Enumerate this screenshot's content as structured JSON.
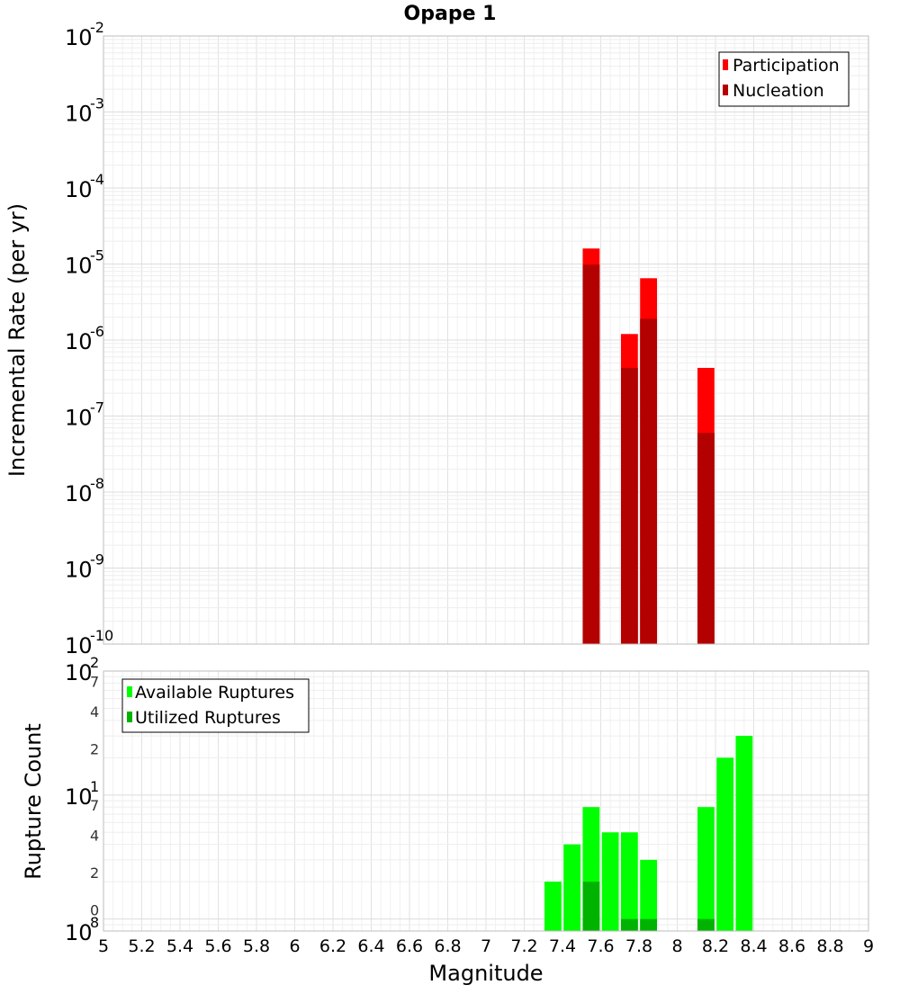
{
  "chart_data": [
    {
      "type": "bar",
      "title": "Opape 1",
      "xlabel": "",
      "ylabel": "Incremental Rate (per yr)",
      "yscale": "log",
      "ylim": [
        1e-10,
        0.01
      ],
      "xlim": [
        5,
        9
      ],
      "grid": true,
      "legend_position": "top-right",
      "y_tick_labels": [
        {
          "value": 0.01,
          "base": "10",
          "exp": "-2"
        },
        {
          "value": 0.001,
          "base": "10",
          "exp": "-3"
        },
        {
          "value": 0.0001,
          "base": "10",
          "exp": "-4"
        },
        {
          "value": 1e-05,
          "base": "10",
          "exp": "-5"
        },
        {
          "value": 1e-06,
          "base": "10",
          "exp": "-6"
        },
        {
          "value": 1e-07,
          "base": "10",
          "exp": "-7"
        },
        {
          "value": 1e-08,
          "base": "10",
          "exp": "-8"
        },
        {
          "value": 1e-09,
          "base": "10",
          "exp": "-9"
        },
        {
          "value": 1e-10,
          "base": "10",
          "exp": "-10"
        }
      ],
      "series": [
        {
          "name": "Participation",
          "color": "#ff0000",
          "points": [
            {
              "x": 7.55,
              "y": 1.6e-05
            },
            {
              "x": 7.75,
              "y": 1.2e-06
            },
            {
              "x": 7.85,
              "y": 6.5e-06
            },
            {
              "x": 8.15,
              "y": 4.3e-07
            }
          ]
        },
        {
          "name": "Nucleation",
          "color": "#b30000",
          "points": [
            {
              "x": 7.55,
              "y": 9.8e-06
            },
            {
              "x": 7.75,
              "y": 4.3e-07
            },
            {
              "x": 7.85,
              "y": 1.9e-06
            },
            {
              "x": 8.15,
              "y": 6e-08
            }
          ]
        }
      ]
    },
    {
      "type": "bar",
      "title": "",
      "xlabel": "Magnitude",
      "ylabel": "Rupture Count",
      "yscale": "log",
      "ylim": [
        0.8,
        100
      ],
      "xlim": [
        5,
        9
      ],
      "grid": true,
      "legend_position": "top-left",
      "x_tick_labels": [
        "5",
        "5.2",
        "5.4",
        "5.6",
        "5.8",
        "6",
        "6.2",
        "6.4",
        "6.6",
        "6.8",
        "7",
        "7.2",
        "7.4",
        "7.6",
        "7.8",
        "8",
        "8.2",
        "8.4",
        "8.6",
        "8.8",
        "9"
      ],
      "y_tick_labels": [
        {
          "value": 100,
          "base": "10",
          "exp": "2"
        },
        {
          "value": 70,
          "base": "",
          "exp": "7"
        },
        {
          "value": 40,
          "base": "",
          "exp": "4"
        },
        {
          "value": 20,
          "base": "",
          "exp": "2"
        },
        {
          "value": 10,
          "base": "10",
          "exp": "1"
        },
        {
          "value": 7,
          "base": "",
          "exp": "7"
        },
        {
          "value": 4,
          "base": "",
          "exp": "4"
        },
        {
          "value": 2,
          "base": "",
          "exp": "2"
        },
        {
          "value": 1,
          "base": "",
          "exp": "0"
        },
        {
          "value": 0.8,
          "base": "10",
          "exp": "8"
        }
      ],
      "series": [
        {
          "name": "Available Ruptures",
          "color": "#00ff00",
          "points": [
            {
              "x": 7.35,
              "y": 2
            },
            {
              "x": 7.45,
              "y": 4
            },
            {
              "x": 7.55,
              "y": 8
            },
            {
              "x": 7.65,
              "y": 5
            },
            {
              "x": 7.75,
              "y": 5
            },
            {
              "x": 7.85,
              "y": 3
            },
            {
              "x": 8.15,
              "y": 8
            },
            {
              "x": 8.25,
              "y": 20
            },
            {
              "x": 8.35,
              "y": 30
            }
          ]
        },
        {
          "name": "Utilized Ruptures",
          "color": "#00b300",
          "points": [
            {
              "x": 7.55,
              "y": 2
            },
            {
              "x": 7.75,
              "y": 1
            },
            {
              "x": 7.85,
              "y": 1
            },
            {
              "x": 8.15,
              "y": 1
            }
          ]
        }
      ]
    }
  ]
}
